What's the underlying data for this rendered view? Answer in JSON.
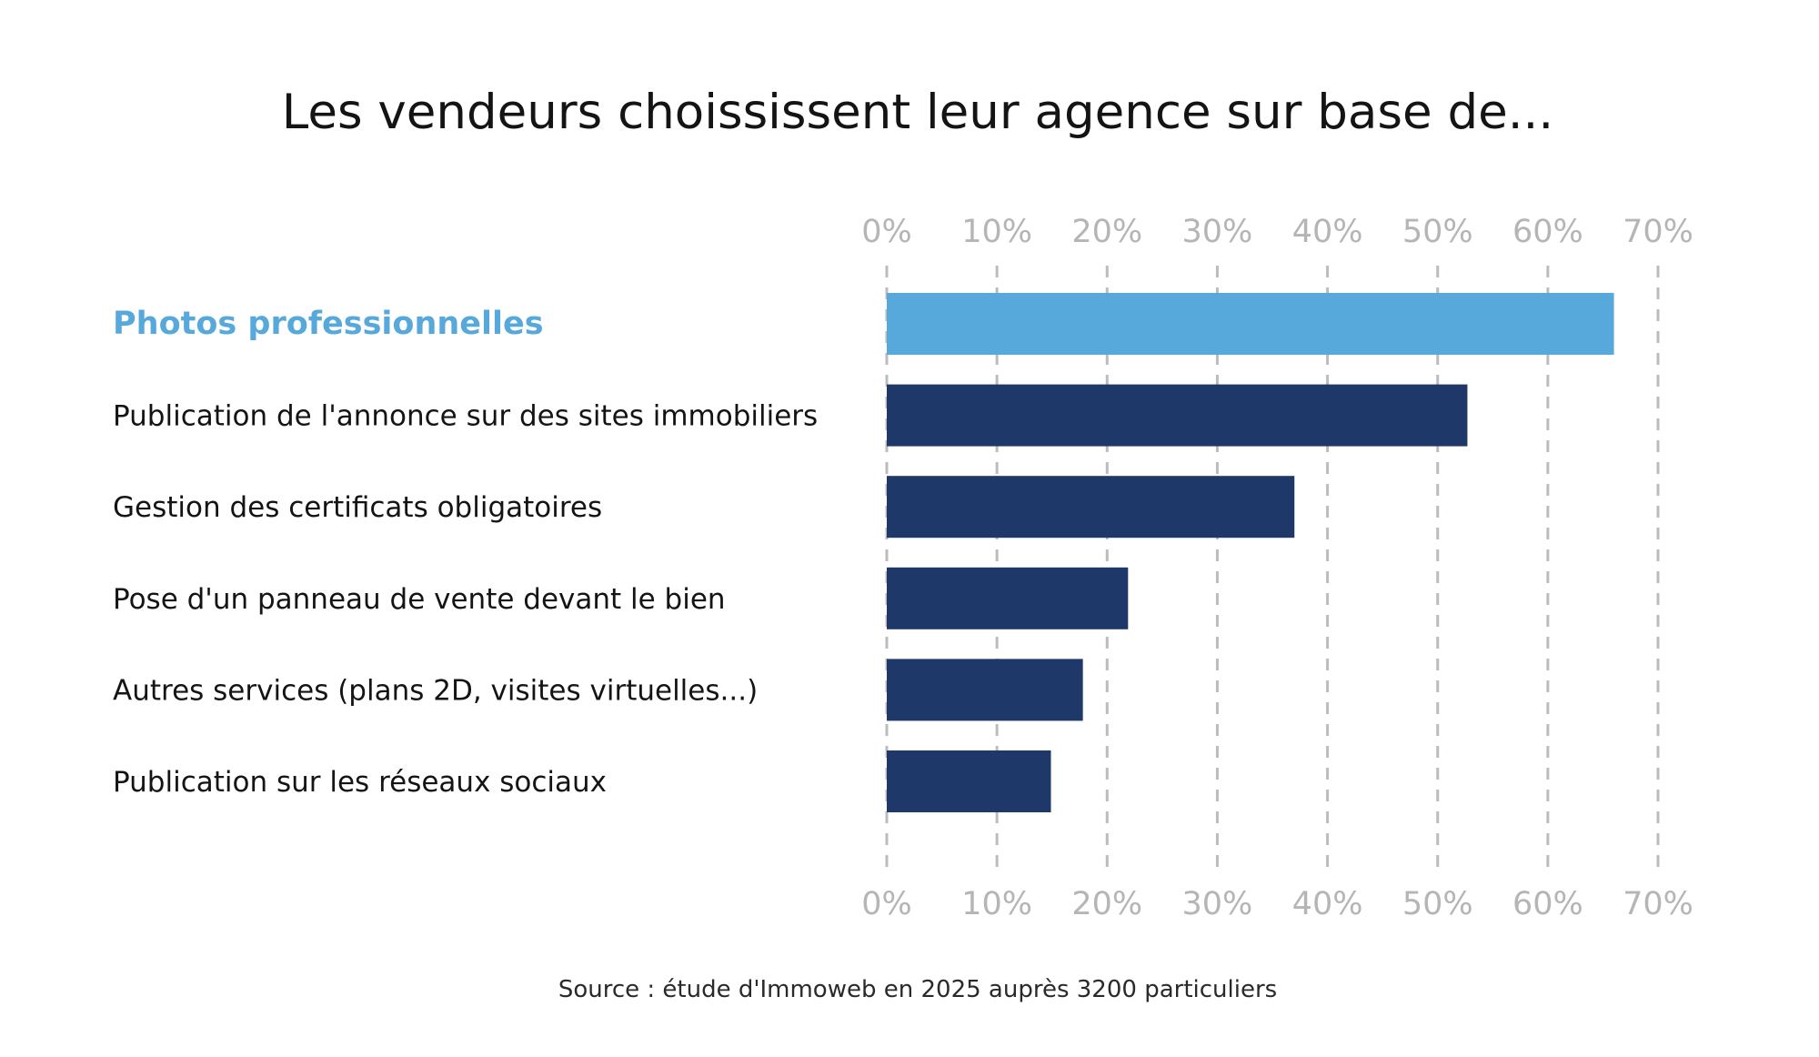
{
  "chart_data": {
    "type": "bar",
    "orientation": "horizontal",
    "title": "Les vendeurs choississent leur agence sur base de...",
    "source": "Source : étude d'Immoweb en 2025 auprès 3200 particuliers",
    "categories": [
      "Photos professionnelles",
      "Publication de l'annonce sur des sites immobiliers",
      "Gestion des certificats obligatoires",
      "Pose d'un panneau de vente devant le bien",
      "Autres services (plans 2D, visites virtuelles...)",
      "Publication sur les réseaux sociaux"
    ],
    "values": [
      66,
      52.7,
      37,
      21.9,
      17.8,
      14.9
    ],
    "unit": "%",
    "xlim": [
      0,
      70
    ],
    "ticks": [
      "0%",
      "10%",
      "20%",
      "30%",
      "40%",
      "50%",
      "60%",
      "70%"
    ],
    "tick_values": [
      0,
      10,
      20,
      30,
      40,
      50,
      60,
      70
    ],
    "axis_labels_position": "top and bottom",
    "grid": "vertical dashed",
    "legend": "none",
    "highlight_index": 0,
    "colors": {
      "highlight_bar": "#58a9db",
      "bar": "#1e386a",
      "highlight_label": "#58a9db",
      "label": "#141414",
      "tick": "#b5b5b5",
      "grid": "#bcbcbc"
    }
  }
}
